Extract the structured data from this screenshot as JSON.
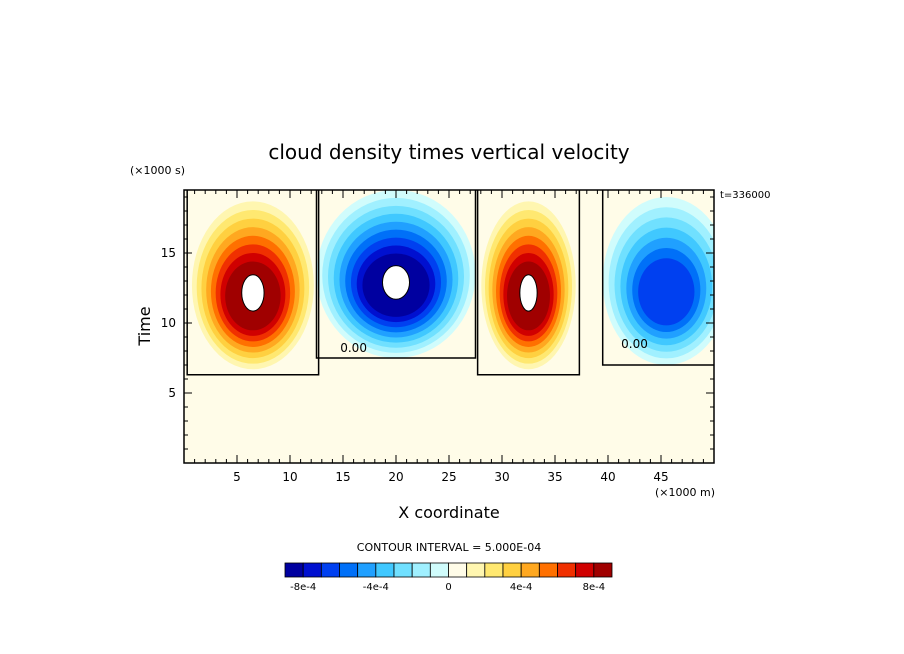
{
  "chart_data": {
    "type": "heatmap",
    "title": "cloud density times vertical velocity",
    "xlabel": "X coordinate",
    "ylabel": "Time",
    "x_unit": "(×1000 m)",
    "y_unit": "(×1000 s)",
    "corner_label": "t=336000",
    "xlim": [
      0,
      50
    ],
    "ylim": [
      0,
      19.5
    ],
    "x_ticks": [
      5,
      10,
      15,
      20,
      25,
      30,
      35,
      40,
      45
    ],
    "y_ticks": [
      5,
      10,
      15
    ],
    "background_value": 0,
    "zero_contour_label": "0.00",
    "zero_contour_label_positions": [
      [
        16,
        8.2
      ],
      [
        42.5,
        8.5
      ]
    ],
    "features": [
      {
        "sign": "positive",
        "x_center": 6.5,
        "y_center": 12.8,
        "x_halfwidth": 6.2,
        "y_halfwidth": 6.5,
        "peak": 0.0012
      },
      {
        "sign": "negative",
        "x_center": 20.0,
        "y_center": 13.5,
        "x_halfwidth": 7.5,
        "y_halfwidth": 6.0,
        "peak": -0.0011
      },
      {
        "sign": "positive",
        "x_center": 32.5,
        "y_center": 12.8,
        "x_halfwidth": 4.8,
        "y_halfwidth": 6.5,
        "peak": 0.0012
      },
      {
        "sign": "negative",
        "x_center": 45.5,
        "y_center": 13.0,
        "x_halfwidth": 6.0,
        "y_halfwidth": 6.0,
        "peak": -0.00065
      }
    ],
    "contour_interval_label": "CONTOUR INTERVAL = 5.000E-04",
    "colorbar": {
      "colors": [
        "#0000a0",
        "#0010d0",
        "#0040f0",
        "#0070f8",
        "#20a0ff",
        "#40c8ff",
        "#70e0ff",
        "#a0f0ff",
        "#d0fcfc",
        "#fffce8",
        "#fff6b0",
        "#ffe870",
        "#ffd040",
        "#ffa820",
        "#ff7000",
        "#f03000",
        "#d00000",
        "#a00000"
      ],
      "tick_labels": [
        "-8e-4",
        "-4e-4",
        "0",
        "4e-4",
        "8e-4"
      ],
      "tick_values": [
        -0.0008,
        -0.0004,
        0,
        0.0004,
        0.0008
      ],
      "range": [
        -0.0009,
        0.0009
      ]
    }
  }
}
